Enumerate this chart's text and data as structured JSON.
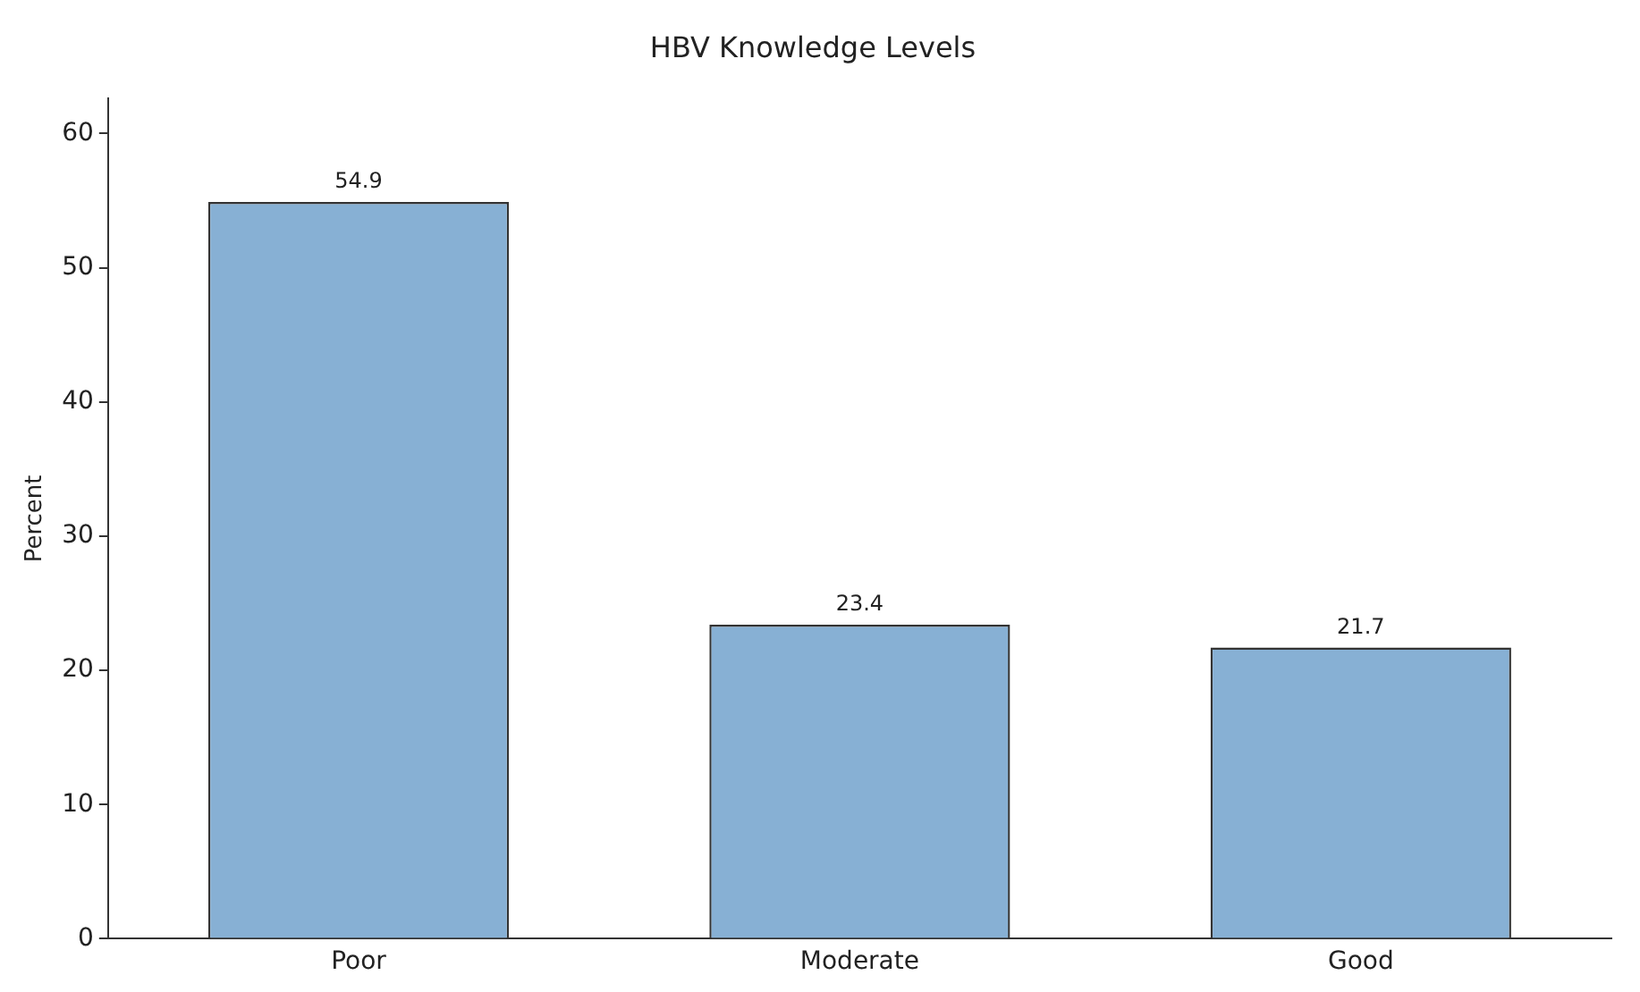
{
  "chart_data": {
    "type": "bar",
    "title": "HBV Knowledge Levels",
    "ylabel": "Percent",
    "categories": [
      "Poor",
      "Moderate",
      "Good"
    ],
    "values": [
      54.9,
      23.4,
      21.7
    ],
    "color": "#87b0d4",
    "ylim": [
      0,
      62.6
    ],
    "yticks": [
      0,
      10,
      20,
      30,
      40,
      50,
      60
    ],
    "grid": false,
    "legend": false,
    "data_labels": true
  }
}
